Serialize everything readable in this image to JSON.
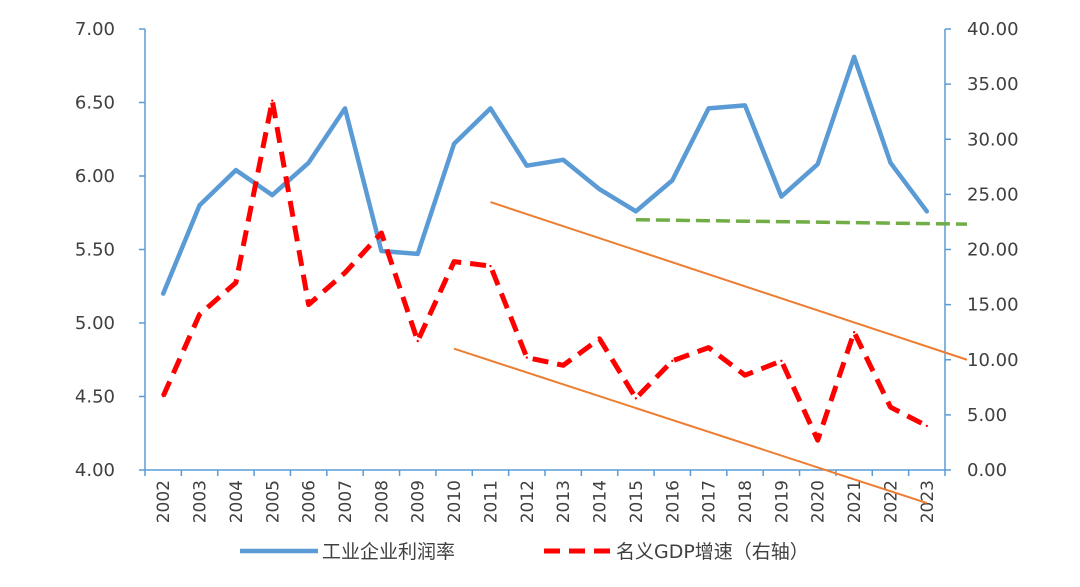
{
  "chart_data": {
    "type": "line",
    "categories": [
      "2002",
      "2003",
      "2004",
      "2005",
      "2006",
      "2007",
      "2008",
      "2009",
      "2010",
      "2011",
      "2012",
      "2013",
      "2014",
      "2015",
      "2016",
      "2017",
      "2018",
      "2019",
      "2020",
      "2021",
      "2022",
      "2023"
    ],
    "series": [
      {
        "name": "工业企业利润率",
        "axis": "left",
        "color": "#5B9BD5",
        "line_style": "solid",
        "values": [
          5.2,
          5.8,
          6.04,
          5.87,
          6.09,
          6.46,
          5.49,
          5.47,
          6.22,
          6.46,
          6.07,
          6.11,
          5.91,
          5.76,
          5.97,
          6.46,
          6.48,
          5.86,
          6.08,
          6.81,
          6.09,
          5.76
        ]
      },
      {
        "name": "名义GDP增速（右轴）",
        "axis": "right",
        "color": "#FF0000",
        "line_style": "dashed",
        "values": [
          6.7,
          14.1,
          17.0,
          33.5,
          15.0,
          17.9,
          21.5,
          11.7,
          18.9,
          18.5,
          10.2,
          9.5,
          11.9,
          6.5,
          9.9,
          11.1,
          8.6,
          9.9,
          2.7,
          12.5,
          5.7,
          4.0
        ]
      }
    ],
    "annotations": [
      {
        "type": "trendline",
        "color": "#ED7D31",
        "style": "solid",
        "axis": "right",
        "from": {
          "x": "2011",
          "y": 24.3
        },
        "to": {
          "x": "2023+",
          "y": 10.0
        }
      },
      {
        "type": "trendline",
        "color": "#ED7D31",
        "style": "solid",
        "axis": "right",
        "from": {
          "x": "2010",
          "y": 11.0
        },
        "to": {
          "x": "2023",
          "y": -3.0
        }
      },
      {
        "type": "trendline",
        "color": "#70AD47",
        "style": "dashed",
        "axis": "right",
        "from": {
          "x": "2015",
          "y": 22.7
        },
        "to": {
          "x": "2023+",
          "y": 22.3
        }
      }
    ],
    "y_left": {
      "ylim": [
        4.0,
        7.0
      ],
      "ticks": [
        "4.00",
        "4.50",
        "5.00",
        "5.50",
        "6.00",
        "6.50",
        "7.00"
      ]
    },
    "y_right": {
      "ylim": [
        0,
        40
      ],
      "ticks": [
        "0.00",
        "5.00",
        "10.00",
        "15.00",
        "20.00",
        "25.00",
        "30.00",
        "35.00",
        "40.00"
      ]
    },
    "legend": {
      "position": "bottom"
    },
    "grid": false,
    "axis_color": "#5B9BD5"
  }
}
